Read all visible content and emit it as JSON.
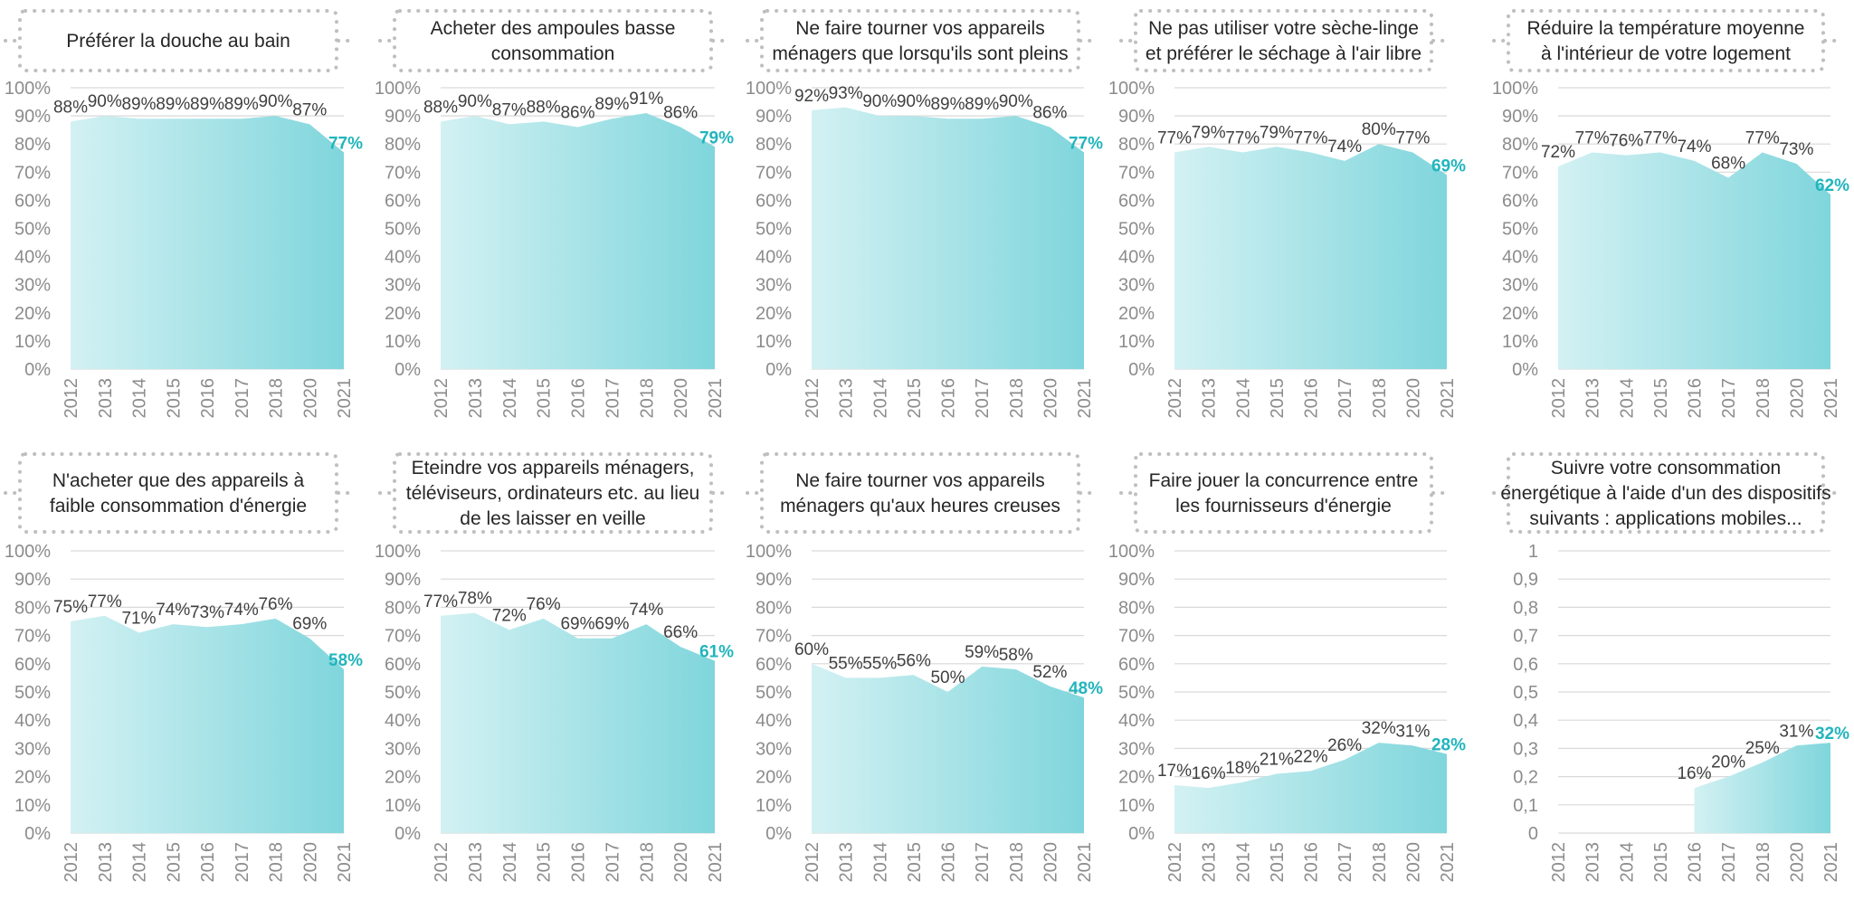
{
  "colors": {
    "area_light": "#d3f1f3",
    "area_dark": "#7fd6dc",
    "last_label": "#21b5bd",
    "grid": "#d9d9d9",
    "axis_text": "#8c8c8c",
    "label_text": "#404040",
    "title_border": "#bfbfbf"
  },
  "chart_data": [
    {
      "type": "area",
      "title": "Préférer la douche au bain",
      "x": [
        "2012",
        "2013",
        "2014",
        "2015",
        "2016",
        "2017",
        "2018",
        "2020",
        "2021"
      ],
      "values": [
        88,
        90,
        89,
        89,
        89,
        89,
        90,
        87,
        77
      ],
      "value_labels": [
        "88%",
        "90%",
        "89%",
        "89%",
        "89%",
        "89%",
        "90%",
        "87%",
        "77%"
      ],
      "y_ticks": [
        "0%",
        "10%",
        "20%",
        "30%",
        "40%",
        "50%",
        "60%",
        "70%",
        "80%",
        "90%",
        "100%"
      ],
      "ylim": [
        0,
        100
      ],
      "grid": true
    },
    {
      "type": "area",
      "title": "Acheter des ampoules basse consommation",
      "x": [
        "2012",
        "2013",
        "2014",
        "2015",
        "2016",
        "2017",
        "2018",
        "2020",
        "2021"
      ],
      "values": [
        88,
        90,
        87,
        88,
        86,
        89,
        91,
        86,
        79
      ],
      "value_labels": [
        "88%",
        "90%",
        "87%",
        "88%",
        "86%",
        "89%",
        "91%",
        "86%",
        "79%"
      ],
      "y_ticks": [
        "0%",
        "10%",
        "20%",
        "30%",
        "40%",
        "50%",
        "60%",
        "70%",
        "80%",
        "90%",
        "100%"
      ],
      "ylim": [
        0,
        100
      ],
      "grid": true
    },
    {
      "type": "area",
      "title": "Ne faire tourner vos appareils ménagers que lorsqu'ils sont pleins",
      "x": [
        "2012",
        "2013",
        "2014",
        "2015",
        "2016",
        "2017",
        "2018",
        "2020",
        "2021"
      ],
      "values": [
        92,
        93,
        90,
        90,
        89,
        89,
        90,
        86,
        77
      ],
      "value_labels": [
        "92%",
        "93%",
        "90%",
        "90%",
        "89%",
        "89%",
        "90%",
        "86%",
        "77%"
      ],
      "y_ticks": [
        "0%",
        "10%",
        "20%",
        "30%",
        "40%",
        "50%",
        "60%",
        "70%",
        "80%",
        "90%",
        "100%"
      ],
      "ylim": [
        0,
        100
      ],
      "grid": true
    },
    {
      "type": "area",
      "title": "Ne pas utiliser votre sèche-linge et préférer le séchage à l'air libre",
      "x": [
        "2012",
        "2013",
        "2014",
        "2015",
        "2016",
        "2017",
        "2018",
        "2020",
        "2021"
      ],
      "values": [
        77,
        79,
        77,
        79,
        77,
        74,
        80,
        77,
        69
      ],
      "value_labels": [
        "77%",
        "79%",
        "77%",
        "79%",
        "77%",
        "74%",
        "80%",
        "77%",
        "69%"
      ],
      "y_ticks": [
        "0%",
        "10%",
        "20%",
        "30%",
        "40%",
        "50%",
        "60%",
        "70%",
        "80%",
        "90%",
        "100%"
      ],
      "ylim": [
        0,
        100
      ],
      "grid": true
    },
    {
      "type": "area",
      "title": "Réduire la température moyenne à l'intérieur  de votre logement",
      "x": [
        "2012",
        "2013",
        "2014",
        "2015",
        "2016",
        "2017",
        "2018",
        "2020",
        "2021"
      ],
      "values": [
        72,
        77,
        76,
        77,
        74,
        68,
        77,
        73,
        62
      ],
      "value_labels": [
        "72%",
        "77%",
        "76%",
        "77%",
        "74%",
        "68%",
        "77%",
        "73%",
        "62%"
      ],
      "y_ticks": [
        "0%",
        "10%",
        "20%",
        "30%",
        "40%",
        "50%",
        "60%",
        "70%",
        "80%",
        "90%",
        "100%"
      ],
      "ylim": [
        0,
        100
      ],
      "grid": true
    },
    {
      "type": "area",
      "title": "N'acheter que des appareils à faible consommation d'énergie",
      "x": [
        "2012",
        "2013",
        "2014",
        "2015",
        "2016",
        "2017",
        "2018",
        "2020",
        "2021"
      ],
      "values": [
        75,
        77,
        71,
        74,
        73,
        74,
        76,
        69,
        58
      ],
      "value_labels": [
        "75%",
        "77%",
        "71%",
        "74%",
        "73%",
        "74%",
        "76%",
        "69%",
        "58%"
      ],
      "y_ticks": [
        "0%",
        "10%",
        "20%",
        "30%",
        "40%",
        "50%",
        "60%",
        "70%",
        "80%",
        "90%",
        "100%"
      ],
      "ylim": [
        0,
        100
      ],
      "grid": true
    },
    {
      "type": "area",
      "title": "Eteindre vos appareils ménagers, téléviseurs, ordinateurs etc. au lieu de les laisser en veille",
      "x": [
        "2012",
        "2013",
        "2014",
        "2015",
        "2016",
        "2017",
        "2018",
        "2020",
        "2021"
      ],
      "values": [
        77,
        78,
        72,
        76,
        69,
        69,
        74,
        66,
        61
      ],
      "value_labels": [
        "77%",
        "78%",
        "72%",
        "76%",
        "69%",
        "69%",
        "74%",
        "66%",
        "61%"
      ],
      "y_ticks": [
        "0%",
        "10%",
        "20%",
        "30%",
        "40%",
        "50%",
        "60%",
        "70%",
        "80%",
        "90%",
        "100%"
      ],
      "ylim": [
        0,
        100
      ],
      "grid": true
    },
    {
      "type": "area",
      "title": "Ne faire tourner vos appareils ménagers qu'aux heures creuses",
      "x": [
        "2012",
        "2013",
        "2014",
        "2015",
        "2016",
        "2017",
        "2018",
        "2020",
        "2021"
      ],
      "values": [
        60,
        55,
        55,
        56,
        50,
        59,
        58,
        52,
        48
      ],
      "value_labels": [
        "60%",
        "55%",
        "55%",
        "56%",
        "50%",
        "59%",
        "58%",
        "52%",
        "48%"
      ],
      "y_ticks": [
        "0%",
        "10%",
        "20%",
        "30%",
        "40%",
        "50%",
        "60%",
        "70%",
        "80%",
        "90%",
        "100%"
      ],
      "ylim": [
        0,
        100
      ],
      "grid": true
    },
    {
      "type": "area",
      "title": "Faire jouer la concurrence entre les fournisseurs d'énergie",
      "x": [
        "2012",
        "2013",
        "2014",
        "2015",
        "2016",
        "2017",
        "2018",
        "2020",
        "2021"
      ],
      "values": [
        17,
        16,
        18,
        21,
        22,
        26,
        32,
        31,
        28
      ],
      "value_labels": [
        "17%",
        "16%",
        "18%",
        "21%",
        "22%",
        "26%",
        "32%",
        "31%",
        "28%"
      ],
      "y_ticks": [
        "0%",
        "10%",
        "20%",
        "30%",
        "40%",
        "50%",
        "60%",
        "70%",
        "80%",
        "90%",
        "100%"
      ],
      "ylim": [
        0,
        100
      ],
      "grid": true
    },
    {
      "type": "area",
      "title": "Suivre votre consommation énergétique à l'aide d'un des dispositifs suivants : applications mobiles...",
      "x": [
        "2012",
        "2013",
        "2014",
        "2015",
        "2016",
        "2017",
        "2018",
        "2020",
        "2021"
      ],
      "values": [
        null,
        null,
        null,
        null,
        16,
        20,
        25,
        31,
        32
      ],
      "value_labels": [
        "",
        "",
        "",
        "",
        "16%",
        "20%",
        "25%",
        "31%",
        "32%"
      ],
      "y_ticks": [
        "0",
        "0,1",
        "0,2",
        "0,3",
        "0,4",
        "0,5",
        "0,6",
        "0,7",
        "0,8",
        "0,9",
        "1"
      ],
      "ylim": [
        0,
        100
      ],
      "grid": true
    }
  ]
}
